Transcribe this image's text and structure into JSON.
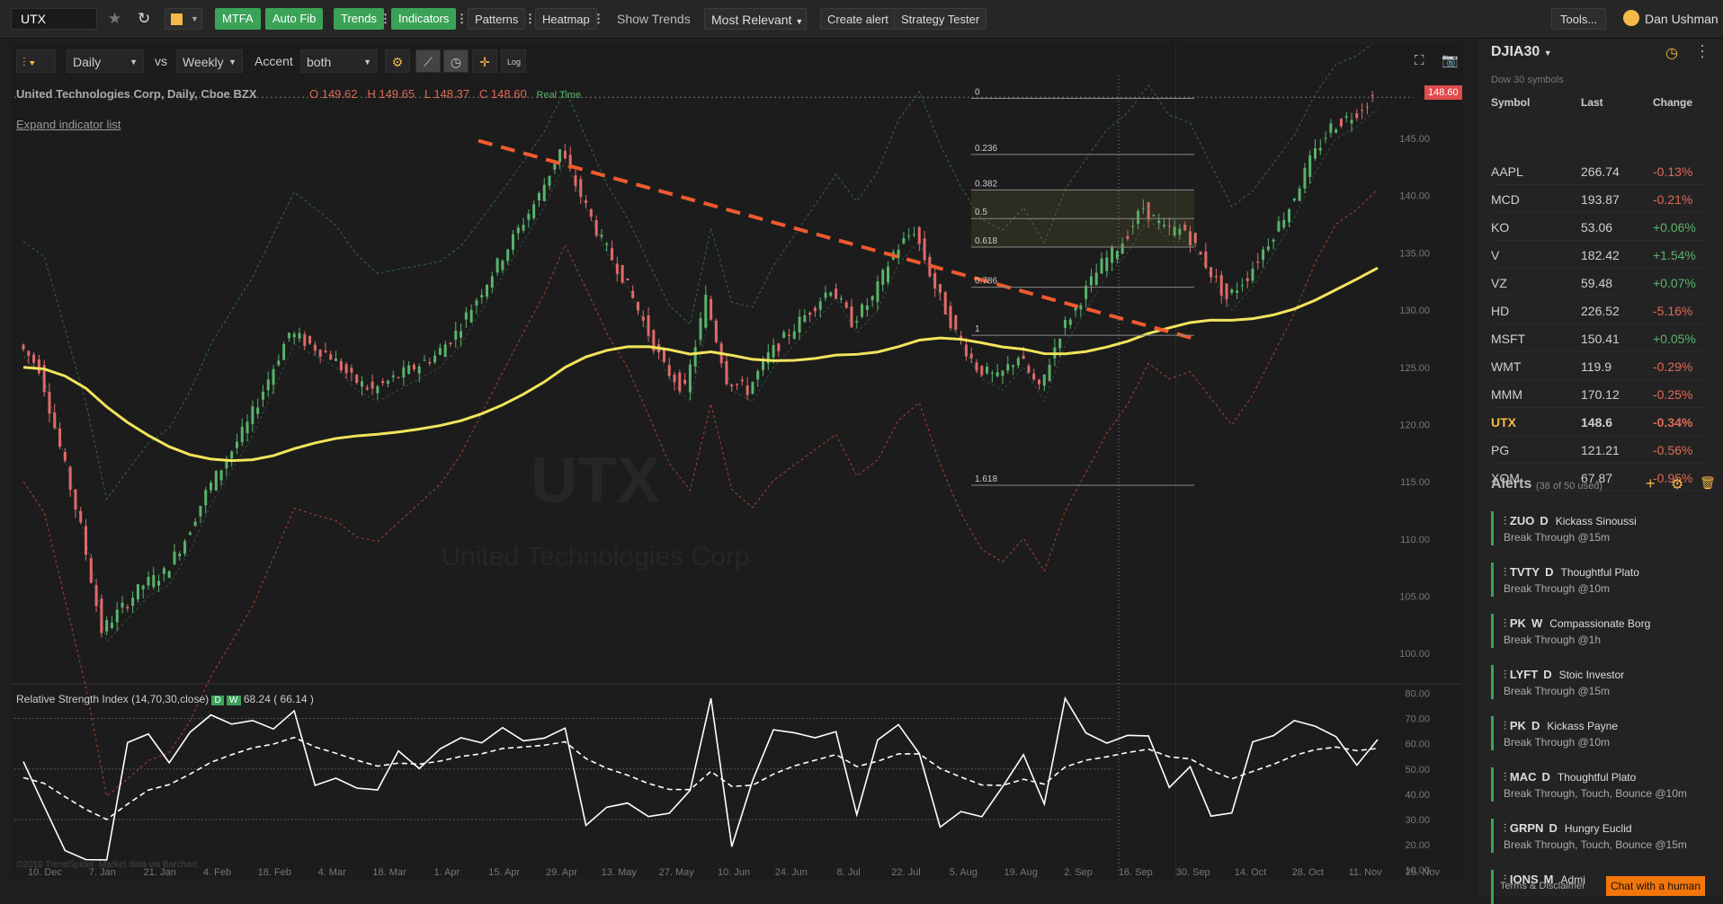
{
  "topbar": {
    "symbol": "UTX",
    "mtfa": "MTFA",
    "autofib": "Auto Fib",
    "trends": "Trends",
    "indicators": "Indicators",
    "patterns": "Patterns",
    "heatmap": "Heatmap",
    "show_trends": "Show Trends",
    "most_relevant": "Most Relevant",
    "create_alert": "Create alert",
    "strategy_tester": "Strategy Tester",
    "tools": "Tools...",
    "user": "Dan Ushman"
  },
  "chart_toolbar": {
    "period": "Daily",
    "vs": "vs",
    "compare": "Weekly",
    "accent_label": "Accent",
    "accent": "both",
    "log": "Log"
  },
  "chart_header": {
    "title": "United Technologies Corp, Daily, Cboe BZX",
    "o": "O 149.62",
    "h": "H 149.65",
    "l": "L 148.37",
    "c": "C 148.60",
    "realtime": "Real Time",
    "expand": "Expand indicator list"
  },
  "watermark": {
    "symbol": "UTX",
    "name": "United Technologies Corp"
  },
  "price_badge": "148.60",
  "rsi": {
    "title": "Relative Strength Index (14,70,30,close)",
    "d": "D",
    "w": "W",
    "v1": "68.24",
    "v2": "( 66.14 )"
  },
  "copyright": "©2019 TrendSpider. Market data via Barchart.",
  "chart_data": {
    "type": "line",
    "price_axis": [
      "145.00",
      "140.00",
      "135.00",
      "130.00",
      "125.00",
      "120.00",
      "115.00",
      "110.00",
      "105.00",
      "100.00"
    ],
    "rsi_axis": [
      "80.00",
      "70.00",
      "60.00",
      "50.00",
      "40.00",
      "30.00",
      "20.00",
      "10.00"
    ],
    "x_labels": [
      "10. Dec",
      "7. Jan",
      "21. Jan",
      "4. Feb",
      "18. Feb",
      "4. Mar",
      "18. Mar",
      "1. Apr",
      "15. Apr",
      "29. Apr",
      "13. May",
      "27. May",
      "10. Jun",
      "24. Jun",
      "8. Jul",
      "22. Jul",
      "5. Aug",
      "19. Aug",
      "2. Sep",
      "16. Sep",
      "30. Sep",
      "14. Oct",
      "28. Oct",
      "11. Nov",
      "25. Nov"
    ],
    "fib_levels": [
      "0",
      "0.236",
      "0.382",
      "0.5",
      "0.618",
      "0.786",
      "1",
      "1.618"
    ],
    "series": [
      {
        "values": [
          127,
          125,
          118,
          111,
          102,
          104,
          106,
          107,
          110,
          114,
          117,
          120,
          124,
          128,
          127,
          126,
          124,
          123,
          124,
          125,
          126,
          128,
          131,
          134,
          137,
          140,
          144,
          140,
          136,
          133,
          129,
          125,
          123,
          131,
          124,
          123,
          126,
          128,
          130,
          132,
          129,
          131,
          135,
          137,
          132,
          128,
          125,
          124,
          126,
          123,
          128,
          131,
          134,
          136,
          139,
          137,
          137,
          134,
          131,
          133,
          136,
          139,
          143,
          146,
          147,
          148.6
        ]
      }
    ]
  },
  "watchlist": {
    "name": "DJIA30",
    "subtitle": "Dow 30 symbols",
    "headers": [
      "Symbol",
      "Last",
      "Change"
    ],
    "rows": [
      [
        "AAPL",
        "266.74",
        "-0.13%"
      ],
      [
        "MCD",
        "193.87",
        "-0.21%"
      ],
      [
        "KO",
        "53.06",
        "+0.06%"
      ],
      [
        "V",
        "182.42",
        "+1.54%"
      ],
      [
        "VZ",
        "59.48",
        "+0.07%"
      ],
      [
        "HD",
        "226.52",
        "-5.16%"
      ],
      [
        "MSFT",
        "150.41",
        "+0.05%"
      ],
      [
        "WMT",
        "119.9",
        "-0.29%"
      ],
      [
        "MMM",
        "170.12",
        "-0.25%"
      ],
      [
        "UTX",
        "148.6",
        "-0.34%"
      ],
      [
        "PG",
        "121.21",
        "-0.56%"
      ],
      [
        "XOM",
        "67.87",
        "-0.95%"
      ]
    ]
  },
  "alerts": {
    "title": "Alerts",
    "count": "(38 of 50 used)",
    "items": [
      [
        "ZUO",
        "D",
        "Kickass Sinoussi",
        "Break Through @15m"
      ],
      [
        "TVTY",
        "D",
        "Thoughtful Plato",
        "Break Through @10m"
      ],
      [
        "PK",
        "W",
        "Compassionate Borg",
        "Break Through @1h"
      ],
      [
        "LYFT",
        "D",
        "Stoic Investor",
        "Break Through @15m"
      ],
      [
        "PK",
        "D",
        "Kickass Payne",
        "Break Through @10m"
      ],
      [
        "MAC",
        "D",
        "Thoughtful Plato",
        "Break Through, Touch, Bounce @10m"
      ],
      [
        "GRPN",
        "D",
        "Hungry Euclid",
        "Break Through, Touch, Bounce @15m"
      ],
      [
        "IONS",
        "M",
        "Admi",
        ""
      ]
    ],
    "terms": "Terms & Disclaimer",
    "chat": "Chat with a human"
  }
}
